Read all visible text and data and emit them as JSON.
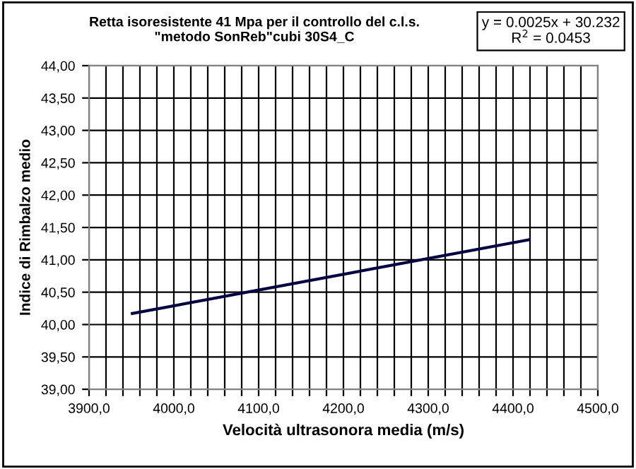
{
  "chart_data": {
    "type": "line",
    "title": "Retta isoresistente 41 Mpa per il controllo del c.l.s.\n\"metodo SonReb\"cubi 30S4_C",
    "xlabel": "Velocità ultrasonora media (m/s)",
    "ylabel": "Indice di Rimbalzo medio",
    "annotations": [
      "y = 0.0025x + 30.232\nR$^{2}$ = 0.0453"
    ],
    "x": [
      3951,
      4419
    ],
    "series": [
      {
        "color": "#000040",
        "values": [
          40.17,
          41.31
        ]
      }
    ],
    "xlim": [
      3900,
      4500
    ],
    "ylim": [
      39,
      44
    ],
    "xticks": [
      {
        "value": 3900,
        "label": "3900,0"
      },
      {
        "value": 3920,
        "label": null
      },
      {
        "value": 3940,
        "label": null
      },
      {
        "value": 3960,
        "label": null
      },
      {
        "value": 3980,
        "label": null
      },
      {
        "value": 4000,
        "label": "4000,0"
      },
      {
        "value": 4020,
        "label": null
      },
      {
        "value": 4040,
        "label": null
      },
      {
        "value": 4060,
        "label": null
      },
      {
        "value": 4080,
        "label": null
      },
      {
        "value": 4100,
        "label": "4100,0"
      },
      {
        "value": 4120,
        "label": null
      },
      {
        "value": 4140,
        "label": null
      },
      {
        "value": 4160,
        "label": null
      },
      {
        "value": 4180,
        "label": null
      },
      {
        "value": 4200,
        "label": "4200,0"
      },
      {
        "value": 4220,
        "label": null
      },
      {
        "value": 4240,
        "label": null
      },
      {
        "value": 4260,
        "label": null
      },
      {
        "value": 4280,
        "label": null
      },
      {
        "value": 4300,
        "label": "4300,0"
      },
      {
        "value": 4320,
        "label": null
      },
      {
        "value": 4340,
        "label": null
      },
      {
        "value": 4360,
        "label": null
      },
      {
        "value": 4380,
        "label": null
      },
      {
        "value": 4400,
        "label": "4400,0"
      },
      {
        "value": 4420,
        "label": null
      },
      {
        "value": 4440,
        "label": null
      },
      {
        "value": 4460,
        "label": null
      },
      {
        "value": 4480,
        "label": null
      },
      {
        "value": 4500,
        "label": "4500,0"
      }
    ],
    "yticks": [
      {
        "value": 39,
        "label": "39,00"
      },
      {
        "value": 39.5,
        "label": "39,50"
      },
      {
        "value": 40,
        "label": "40,00"
      },
      {
        "value": 40.5,
        "label": "40,50"
      },
      {
        "value": 41,
        "label": "41,00"
      },
      {
        "value": 41.5,
        "label": "41,50"
      },
      {
        "value": 42,
        "label": "42,00"
      },
      {
        "value": 42.5,
        "label": "42,50"
      },
      {
        "value": 43,
        "label": "43,00"
      },
      {
        "value": 43.5,
        "label": "43,50"
      },
      {
        "value": 44,
        "label": "44,00"
      }
    ],
    "grid": true,
    "marker": "none",
    "line_style": "solid"
  }
}
